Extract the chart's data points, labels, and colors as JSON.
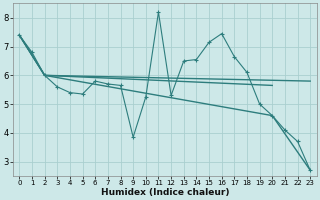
{
  "bg_color": "#cde8e8",
  "grid_color": "#aacfcf",
  "line_color": "#2d7d7d",
  "xlabel": "Humidex (Indice chaleur)",
  "xlim": [
    -0.5,
    23.5
  ],
  "ylim": [
    2.5,
    8.5
  ],
  "yticks": [
    3,
    4,
    5,
    6,
    7,
    8
  ],
  "xticks": [
    0,
    1,
    2,
    3,
    4,
    5,
    6,
    7,
    8,
    9,
    10,
    11,
    12,
    13,
    14,
    15,
    16,
    17,
    18,
    19,
    20,
    21,
    22,
    23
  ],
  "lines": [
    {
      "x": [
        0,
        1,
        2,
        3,
        4,
        5,
        6,
        7,
        8,
        9,
        10,
        11,
        12,
        13,
        14,
        15,
        16,
        17,
        18,
        19,
        20,
        21,
        22,
        23
      ],
      "y": [
        7.4,
        6.8,
        6.0,
        5.6,
        5.4,
        5.35,
        5.8,
        5.7,
        5.65,
        3.85,
        5.25,
        8.2,
        5.3,
        6.5,
        6.55,
        7.15,
        7.45,
        6.65,
        6.1,
        5.0,
        4.6,
        4.1,
        3.7,
        2.7
      ],
      "marker": "+",
      "markersize": 3.5,
      "linewidth": 0.8,
      "linestyle": "-"
    },
    {
      "x": [
        0,
        2,
        23
      ],
      "y": [
        7.4,
        6.0,
        5.8
      ],
      "marker": null,
      "markersize": 0,
      "linewidth": 1.0,
      "linestyle": "-"
    },
    {
      "x": [
        0,
        2,
        20
      ],
      "y": [
        7.4,
        6.0,
        5.65
      ],
      "marker": null,
      "markersize": 0,
      "linewidth": 1.0,
      "linestyle": "-"
    },
    {
      "x": [
        0,
        2,
        20,
        23
      ],
      "y": [
        7.4,
        6.0,
        4.6,
        2.7
      ],
      "marker": null,
      "markersize": 0,
      "linewidth": 1.0,
      "linestyle": "-"
    }
  ]
}
